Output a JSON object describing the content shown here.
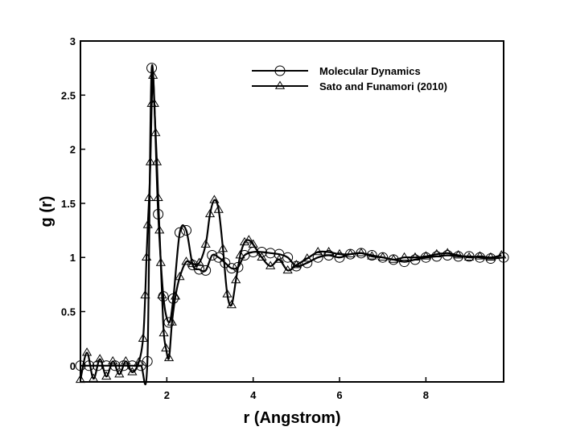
{
  "chart_data": {
    "type": "line",
    "title": "",
    "xlabel": "r (Angstrom)",
    "ylabel": "g (r)",
    "xlim": [
      0,
      9.8
    ],
    "ylim": [
      -0.15,
      3
    ],
    "x_ticks": [
      {
        "value": 2,
        "label": "2"
      },
      {
        "value": 4,
        "label": "4"
      },
      {
        "value": 6,
        "label": "6"
      },
      {
        "value": 8,
        "label": "8"
      }
    ],
    "y_ticks": [
      {
        "value": 0,
        "label": "0"
      },
      {
        "value": 0.5,
        "label": "0.5"
      },
      {
        "value": 1,
        "label": "1"
      },
      {
        "value": 1.5,
        "label": "1.5"
      },
      {
        "value": 2,
        "label": "2"
      },
      {
        "value": 2.5,
        "label": "2.5"
      },
      {
        "value": 3,
        "label": "3"
      }
    ],
    "grid": false,
    "legend_position": "top-right",
    "line_color": "#000000",
    "series": [
      {
        "name": "Molecular Dynamics",
        "marker": "circle",
        "x": [
          0.0,
          0.2,
          0.4,
          0.6,
          0.8,
          1.0,
          1.2,
          1.4,
          1.55,
          1.65,
          1.8,
          1.92,
          2.05,
          2.15,
          2.3,
          2.45,
          2.6,
          2.75,
          2.9,
          3.05,
          3.2,
          3.35,
          3.5,
          3.65,
          3.8,
          4.0,
          4.2,
          4.4,
          4.6,
          4.8,
          5.0,
          5.25,
          5.5,
          5.75,
          6.0,
          6.25,
          6.5,
          6.75,
          7.0,
          7.25,
          7.5,
          7.75,
          8.0,
          8.25,
          8.5,
          8.75,
          9.0,
          9.25,
          9.5,
          9.8
        ],
        "y": [
          0.0,
          0.0,
          0.0,
          0.0,
          0.0,
          0.0,
          0.0,
          0.0,
          0.04,
          2.75,
          1.4,
          0.64,
          0.4,
          0.62,
          1.23,
          1.25,
          0.93,
          0.89,
          0.88,
          1.02,
          1.0,
          0.95,
          0.9,
          0.91,
          1.02,
          1.05,
          1.05,
          1.04,
          1.03,
          1.0,
          0.92,
          0.95,
          1.0,
          1.02,
          1.0,
          1.03,
          1.04,
          1.02,
          1.0,
          0.98,
          0.96,
          0.98,
          1.0,
          1.01,
          1.02,
          1.01,
          1.01,
          1.0,
          0.99,
          1.0
        ]
      },
      {
        "name": "Sato and Funamori (2010)",
        "marker": "triangle",
        "x": [
          0.0,
          0.15,
          0.3,
          0.45,
          0.6,
          0.75,
          0.9,
          1.05,
          1.2,
          1.35,
          1.45,
          1.5,
          1.53,
          1.56,
          1.59,
          1.62,
          1.65,
          1.68,
          1.71,
          1.74,
          1.77,
          1.8,
          1.83,
          1.86,
          1.89,
          1.93,
          1.98,
          2.05,
          2.12,
          2.2,
          2.3,
          2.45,
          2.6,
          2.75,
          2.9,
          3.0,
          3.1,
          3.2,
          3.3,
          3.4,
          3.5,
          3.6,
          3.7,
          3.8,
          3.9,
          4.0,
          4.2,
          4.4,
          4.6,
          4.8,
          5.0,
          5.25,
          5.5,
          5.75,
          6.0,
          6.25,
          6.5,
          6.75,
          7.0,
          7.25,
          7.5,
          7.75,
          8.0,
          8.25,
          8.5,
          8.75,
          9.0,
          9.25,
          9.5,
          9.75
        ],
        "y": [
          -0.13,
          0.12,
          -0.12,
          0.06,
          -0.1,
          0.04,
          -0.08,
          0.04,
          -0.06,
          0.03,
          0.25,
          0.65,
          1.0,
          1.3,
          1.55,
          1.88,
          2.42,
          2.68,
          2.42,
          2.15,
          1.88,
          1.55,
          1.25,
          0.95,
          0.65,
          0.3,
          0.16,
          0.07,
          0.4,
          0.64,
          0.82,
          0.96,
          0.94,
          0.95,
          1.12,
          1.4,
          1.53,
          1.44,
          1.08,
          0.66,
          0.56,
          0.79,
          1.02,
          1.14,
          1.16,
          1.12,
          1.0,
          0.92,
          0.98,
          0.88,
          0.93,
          0.99,
          1.05,
          1.05,
          1.03,
          1.03,
          1.04,
          1.01,
          1.0,
          0.98,
          1.0,
          1.0,
          1.01,
          1.03,
          1.04,
          1.02,
          1.0,
          1.01,
          1.0,
          1.02
        ]
      }
    ]
  }
}
